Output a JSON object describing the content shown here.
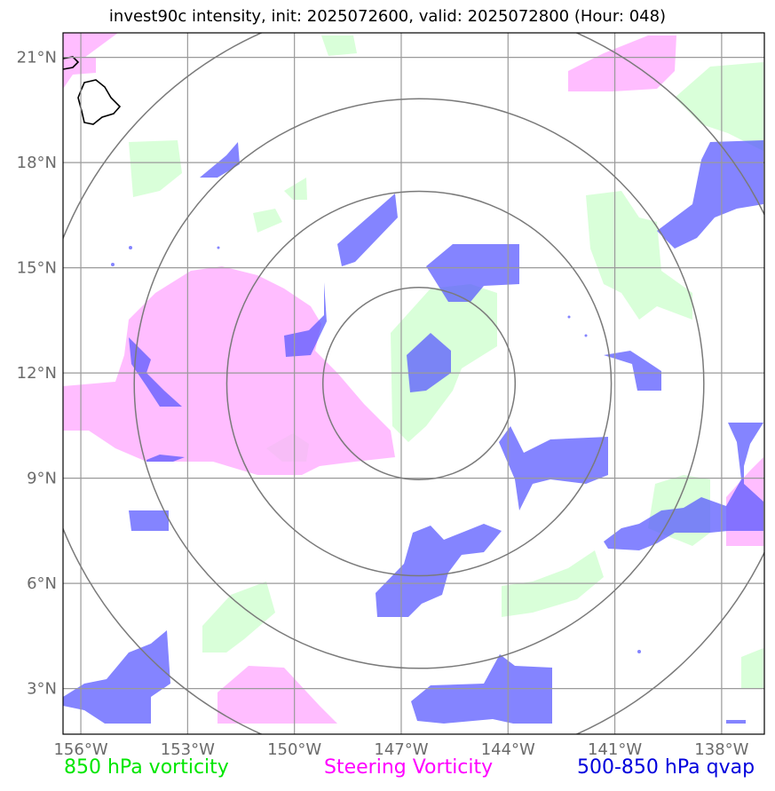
{
  "title": "invest90c intensity, init: 2025072600, valid: 2025072800 (Hour: 048)",
  "map": {
    "extent": {
      "lon": [
        -156.5,
        -136.8
      ],
      "lat": [
        1.7,
        21.7
      ]
    },
    "center": {
      "lon": -146.5,
      "lat": 11.7
    },
    "range_rings_deg": [
      2.7,
      5.4,
      8.0,
      10.8
    ],
    "lon_ticks": [
      {
        "value": -156,
        "label": "156°W"
      },
      {
        "value": -153,
        "label": "153°W"
      },
      {
        "value": -150,
        "label": "150°W"
      },
      {
        "value": -147,
        "label": "147°W"
      },
      {
        "value": -144,
        "label": "144°W"
      },
      {
        "value": -141,
        "label": "141°W"
      },
      {
        "value": -138,
        "label": "138°W"
      }
    ],
    "lat_ticks": [
      {
        "value": 3,
        "label": "3°N"
      },
      {
        "value": 6,
        "label": "6°N"
      },
      {
        "value": 9,
        "label": "9°N"
      },
      {
        "value": 12,
        "label": "12°N"
      },
      {
        "value": 15,
        "label": "15°N"
      },
      {
        "value": 18,
        "label": "18°N"
      },
      {
        "value": 21,
        "label": "21°N"
      }
    ],
    "colors": {
      "vorticity_850": "#ccffcc",
      "steering_vorticity": "#ffaaff",
      "qvap": "#5555ff",
      "grid": "#9a9a9a",
      "rings": "#7a7a7a",
      "coast": "#000000"
    }
  },
  "legend": {
    "vort850": "850 hPa vorticity",
    "steering": "Steering Vorticity",
    "qvap": "500-850 hPa qvap"
  }
}
